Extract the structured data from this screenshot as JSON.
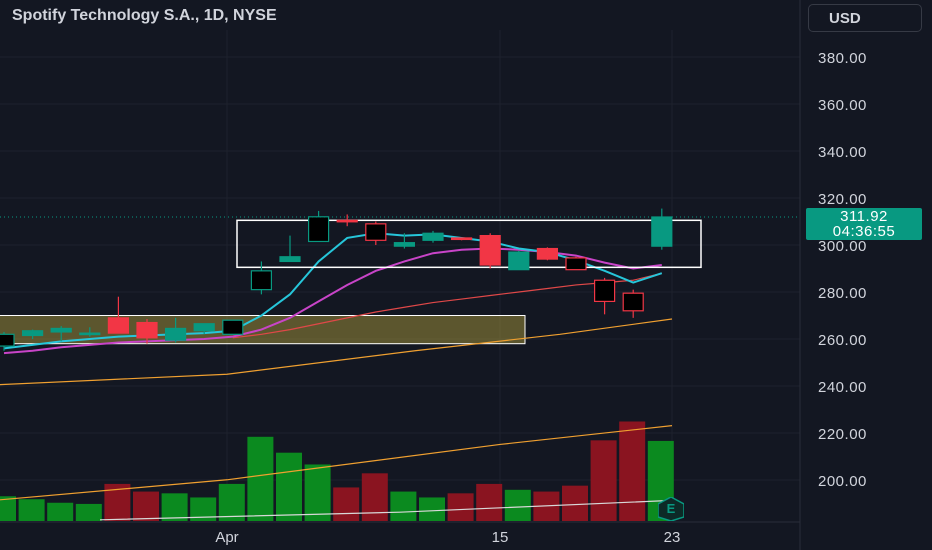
{
  "header": {
    "title": "Spotify Technology S.A., 1D, NYSE"
  },
  "currency_button": {
    "label": "USD"
  },
  "last_price": {
    "value": "311.92",
    "countdown": "04:36:55",
    "color": "#089981"
  },
  "earnings_badge": {
    "label": "E"
  },
  "colors": {
    "up": "#089981",
    "down": "#f23645",
    "vol_up": "#0b8a1f",
    "vol_down": "#8a1420",
    "bg": "#131722",
    "ema_fast": "#26c6da",
    "ema_mid": "#c844c8",
    "ma_slow": "#e04848",
    "ma_long": "#f0a030"
  },
  "chart_data": {
    "type": "candlestick",
    "symbol": "Spotify Technology S.A.",
    "interval": "1D",
    "exchange": "NYSE",
    "yaxis_ticks": [
      "380.00",
      "360.00",
      "340.00",
      "320.00",
      "300.00",
      "280.00",
      "260.00",
      "240.00",
      "220.00",
      "200.00"
    ],
    "xaxis_ticks": [
      "Apr",
      "15",
      "23"
    ],
    "candles": [
      {
        "o": 257.0,
        "h": 263.0,
        "l": 255.0,
        "c": 262.0
      },
      {
        "o": 261.5,
        "h": 264.0,
        "l": 260.0,
        "c": 263.5
      },
      {
        "o": 263.0,
        "h": 265.5,
        "l": 259.0,
        "c": 264.5
      },
      {
        "o": 262.0,
        "h": 265.0,
        "l": 261.0,
        "c": 262.5
      },
      {
        "o": 269.0,
        "h": 278.0,
        "l": 262.5,
        "c": 262.5
      },
      {
        "o": 267.0,
        "h": 268.5,
        "l": 258.0,
        "c": 260.5
      },
      {
        "o": 259.5,
        "h": 269.0,
        "l": 258.5,
        "c": 264.5
      },
      {
        "o": 263.5,
        "h": 266.0,
        "l": 262.0,
        "c": 266.5
      },
      {
        "o": 262.0,
        "h": 268.0,
        "l": 262.0,
        "c": 268.0
      },
      {
        "o": 281.0,
        "h": 293.0,
        "l": 279.0,
        "c": 289.0
      },
      {
        "o": 293.0,
        "h": 304.0,
        "l": 293.0,
        "c": 295.0
      },
      {
        "o": 301.5,
        "h": 314.5,
        "l": 301.5,
        "c": 312.0
      },
      {
        "o": 310.5,
        "h": 313.0,
        "l": 308.0,
        "c": 310.0
      },
      {
        "o": 309.0,
        "h": 310.0,
        "l": 300.0,
        "c": 302.0
      },
      {
        "o": 299.5,
        "h": 305.0,
        "l": 298.5,
        "c": 301.0
      },
      {
        "o": 302.0,
        "h": 306.0,
        "l": 301.0,
        "c": 305.0
      },
      {
        "o": 303.0,
        "h": 303.0,
        "l": 302.0,
        "c": 302.5
      },
      {
        "o": 304.0,
        "h": 305.0,
        "l": 290.0,
        "c": 291.5
      },
      {
        "o": 289.5,
        "h": 297.5,
        "l": 289.5,
        "c": 297.0
      },
      {
        "o": 298.5,
        "h": 299.0,
        "l": 293.5,
        "c": 294.0
      },
      {
        "o": 294.5,
        "h": 295.0,
        "l": 289.5,
        "c": 289.5
      },
      {
        "o": 285.0,
        "h": 286.0,
        "l": 270.5,
        "c": 276.0
      },
      {
        "o": 279.5,
        "h": 281.0,
        "l": 269.0,
        "c": 272.0
      },
      {
        "o": 299.5,
        "h": 315.5,
        "l": 298.0,
        "c": 311.92
      }
    ],
    "volume_relative": [
      0.42,
      0.37,
      0.31,
      0.29,
      0.63,
      0.5,
      0.47,
      0.4,
      0.63,
      1.43,
      1.16,
      0.96,
      0.57,
      0.81,
      0.5,
      0.4,
      0.47,
      0.63,
      0.53,
      0.5,
      0.6,
      1.37,
      1.69,
      1.36
    ],
    "ema_fast": [
      256,
      257.5,
      259,
      260,
      261,
      261.5,
      262,
      262.5,
      263.5,
      270,
      279,
      293,
      303,
      305,
      304,
      304.5,
      303,
      301.5,
      298.5,
      297,
      293.5,
      289,
      284,
      288
    ],
    "ema_mid": [
      254,
      255,
      256.5,
      257.5,
      258.5,
      259,
      259.5,
      260,
      261,
      264,
      269,
      276,
      283,
      289,
      293,
      296.5,
      298,
      298.5,
      298,
      297,
      295.5,
      292.5,
      290,
      291.5
    ],
    "ma_slow": [
      null,
      null,
      null,
      null,
      null,
      null,
      null,
      null,
      260.5,
      262,
      264,
      266.5,
      269,
      271.5,
      273.5,
      275.5,
      277,
      278.5,
      280,
      281.5,
      283,
      284,
      285,
      288
    ],
    "ma_long": [
      null,
      null,
      null,
      null,
      null,
      null,
      null,
      null,
      null,
      null,
      null,
      null,
      null,
      null,
      null,
      null,
      null,
      null,
      null,
      null,
      null,
      null,
      null,
      null
    ],
    "ma_long_line": [
      [
        -4,
        240.5
      ],
      [
        227,
        245
      ],
      [
        415,
        255
      ],
      [
        560,
        262
      ],
      [
        672,
        268.5
      ]
    ],
    "volume_ma_line": [
      [
        0,
        0.36
      ],
      [
        227,
        0.7
      ],
      [
        500,
        1.3
      ],
      [
        672,
        1.62
      ]
    ],
    "volume_small_ma_line": [
      [
        100,
        0.02
      ],
      [
        400,
        0.15
      ],
      [
        672,
        0.35
      ]
    ],
    "zones": [
      {
        "kind": "rectangle",
        "from_index": 9,
        "to_index": 23,
        "top": 310.5,
        "bottom": 290.5,
        "fill": "none",
        "stroke": "#ffffff"
      },
      {
        "kind": "rectangle",
        "from_index": 0,
        "to_index": 17,
        "top": 270.0,
        "bottom": 258.0,
        "fill": "#b5a33e",
        "stroke": "#ffffff"
      }
    ],
    "last_price": 311.92,
    "ylim": [
      190,
      400
    ]
  }
}
